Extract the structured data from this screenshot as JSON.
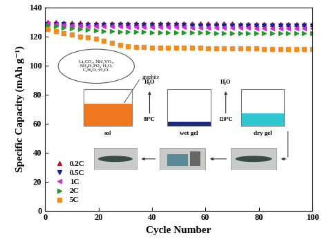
{
  "chart_data": {
    "type": "scatter",
    "xlabel": "Cycle Number",
    "ylabel": "Specific Capacity (mAh g⁻¹)",
    "xlim": [
      0,
      100
    ],
    "xticks": [
      0,
      20,
      40,
      60,
      80,
      100
    ],
    "ylim": [
      0,
      140
    ],
    "yticks": [
      0,
      20,
      40,
      60,
      80,
      100,
      120,
      140
    ],
    "legend": "lower left",
    "x": [
      1,
      4,
      7,
      10,
      13,
      16,
      19,
      22,
      25,
      28,
      31,
      34,
      37,
      40,
      43,
      46,
      49,
      52,
      55,
      58,
      61,
      64,
      67,
      70,
      73,
      76,
      79,
      82,
      85,
      88,
      91,
      94,
      97,
      100
    ],
    "series": [
      {
        "name": "0.2C",
        "color": "#c8102e",
        "marker": "triangle_up",
        "line_style": "none",
        "values": [
          130,
          130,
          129.5,
          129.5,
          129.2,
          129,
          129,
          129,
          129,
          129,
          128.9,
          128.8,
          128.8,
          128.8,
          128.8,
          128.8,
          128.7,
          128.7,
          128.7,
          128.7,
          128.6,
          128.6,
          128.6,
          128.6,
          128.5,
          128.5,
          128.5,
          128.5,
          128.5,
          128.5,
          128.5,
          128.5,
          128.5,
          128.5
        ]
      },
      {
        "name": "0.5C",
        "color": "#1c1c9c",
        "marker": "triangle_down",
        "line_style": "none",
        "values": [
          128.5,
          128.3,
          128.2,
          128,
          128,
          128,
          127.9,
          127.9,
          127.9,
          127.8,
          127.8,
          127.8,
          127.8,
          127.7,
          127.7,
          127.7,
          127.7,
          127.7,
          127.6,
          127.6,
          127.6,
          127.6,
          127.6,
          127.6,
          127.5,
          127.5,
          127.5,
          127.5,
          127.5,
          127.5,
          127.5,
          127.5,
          127.5,
          127.5
        ]
      },
      {
        "name": "1C",
        "color": "#d02fd0",
        "marker": "triangle_left",
        "line_style": "none",
        "values": [
          129,
          128.5,
          128,
          127.5,
          127.3,
          127,
          127,
          126.8,
          126.8,
          126.7,
          126.6,
          126.5,
          126.5,
          126.4,
          126.3,
          126.3,
          126.2,
          126.2,
          126.1,
          126,
          126,
          126,
          125.9,
          125.9,
          125.8,
          125.8,
          125.7,
          125.7,
          125.6,
          125.6,
          125.6,
          125.5,
          125.5,
          125.5
        ]
      },
      {
        "name": "2C",
        "color": "#1f9a2b",
        "marker": "triangle_right",
        "line_style": "none",
        "values": [
          127.5,
          127,
          126,
          125.5,
          125,
          124.5,
          124,
          123.8,
          123.5,
          123.3,
          123.2,
          123,
          123,
          122.8,
          122.8,
          122.7,
          122.6,
          122.5,
          122.5,
          122.4,
          122.4,
          122.3,
          122.3,
          122.2,
          122.2,
          122.2,
          122.1,
          122.1,
          122.1,
          122,
          122,
          122,
          122,
          122
        ]
      },
      {
        "name": "5C",
        "color": "#f28c1c",
        "marker": "square",
        "line_style": "none",
        "values": [
          125,
          123.5,
          122,
          121,
          120,
          119.5,
          118.5,
          117,
          115.5,
          114,
          113,
          112.5,
          112.5,
          112.3,
          112.3,
          112.2,
          112.2,
          112,
          112,
          112,
          111.8,
          111.8,
          111.7,
          111.7,
          111.6,
          111.5,
          111.5,
          111.4,
          111.3,
          111.2,
          111.2,
          111.1,
          111,
          111
        ]
      }
    ],
    "inset": {
      "reagents": [
        "Li₂CO₃, NH₄VO₃,",
        "NH₄H₂PO₄·H₂O,",
        "C₆H₈O₇·H₂O."
      ],
      "graphite": "graphite",
      "steps": [
        "sol",
        "wet gel",
        "dry gel"
      ],
      "transitions": [
        {
          "removed": "H₂O",
          "temperature": "80℃"
        },
        {
          "removed": "H₂O",
          "temperature": "120℃"
        }
      ]
    }
  }
}
